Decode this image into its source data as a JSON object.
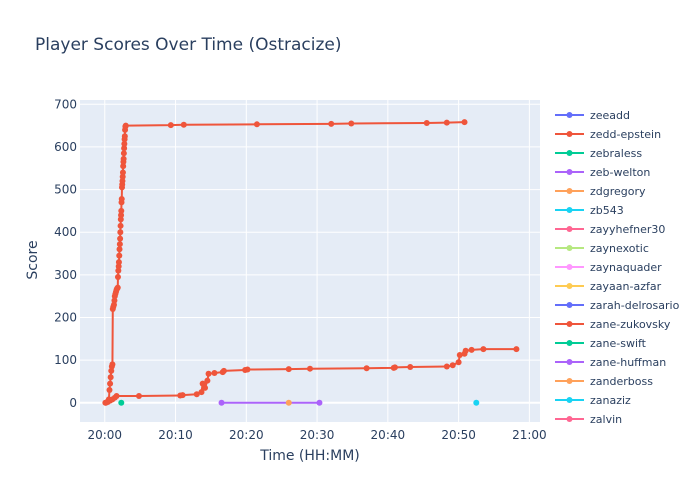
{
  "chart_data": {
    "type": "line",
    "title": "Player Scores Over Time (Ostracize)",
    "xlabel": "Time (HH:MM)",
    "ylabel": "Score",
    "x_ticks": [
      "20:00",
      "20:10",
      "20:20",
      "20:30",
      "20:40",
      "20:50",
      "21:00"
    ],
    "y_ticks": [
      0,
      100,
      200,
      300,
      400,
      500,
      600,
      700
    ],
    "xlim_minutes_after_2000": [
      -3.5,
      61.5
    ],
    "ylim": [
      -45,
      710
    ],
    "grid": true,
    "legend_placement": "right",
    "legend": [
      {
        "name": "zeeadd",
        "color": "#636efa"
      },
      {
        "name": "zedd-epstein",
        "color": "#EF553B"
      },
      {
        "name": "zebraless",
        "color": "#00cc96"
      },
      {
        "name": "zeb-welton",
        "color": "#ab63fa"
      },
      {
        "name": "zdgregory",
        "color": "#FFA15A"
      },
      {
        "name": "zb543",
        "color": "#19d3f3"
      },
      {
        "name": "zayyhefner30",
        "color": "#FF6692"
      },
      {
        "name": "zaynexotic",
        "color": "#B6E880"
      },
      {
        "name": "zaynaquader",
        "color": "#FF97FF"
      },
      {
        "name": "zayaan-azfar",
        "color": "#FECB52"
      },
      {
        "name": "zarah-delrosario",
        "color": "#636efa"
      },
      {
        "name": "zane-zukovsky",
        "color": "#EF553B"
      },
      {
        "name": "zane-swift",
        "color": "#00cc96"
      },
      {
        "name": "zane-huffman",
        "color": "#ab63fa"
      },
      {
        "name": "zanderboss",
        "color": "#FFA15A"
      },
      {
        "name": "zanaziz",
        "color": "#19d3f3"
      },
      {
        "name": "zalvin",
        "color": "#FF6692"
      }
    ],
    "series": [
      {
        "name": "zedd-epstein",
        "color": "#EF553B",
        "points": [
          [
            "20:00:10",
            0
          ],
          [
            "20:00:25",
            3
          ],
          [
            "20:00:35",
            8
          ],
          [
            "20:00:40",
            30
          ],
          [
            "20:00:45",
            45
          ],
          [
            "20:00:50",
            60
          ],
          [
            "20:00:55",
            75
          ],
          [
            "20:01:00",
            85
          ],
          [
            "20:01:05",
            90
          ],
          [
            "20:01:08",
            220
          ],
          [
            "20:01:12",
            225
          ],
          [
            "20:01:18",
            230
          ],
          [
            "20:01:22",
            240
          ],
          [
            "20:01:25",
            250
          ],
          [
            "20:01:30",
            255
          ],
          [
            "20:01:35",
            260
          ],
          [
            "20:01:40",
            265
          ],
          [
            "20:01:45",
            268
          ],
          [
            "20:01:50",
            270
          ],
          [
            "20:01:52",
            295
          ],
          [
            "20:01:55",
            310
          ],
          [
            "20:01:58",
            320
          ],
          [
            "20:02:00",
            330
          ],
          [
            "20:02:03",
            345
          ],
          [
            "20:02:05",
            360
          ],
          [
            "20:02:08",
            372
          ],
          [
            "20:02:10",
            385
          ],
          [
            "20:02:12",
            400
          ],
          [
            "20:02:14",
            415
          ],
          [
            "20:02:16",
            430
          ],
          [
            "20:02:18",
            440
          ],
          [
            "20:02:20",
            450
          ],
          [
            "20:02:22",
            470
          ],
          [
            "20:02:24",
            478
          ],
          [
            "20:02:26",
            505
          ],
          [
            "20:02:28",
            512
          ],
          [
            "20:02:30",
            520
          ],
          [
            "20:02:32",
            530
          ],
          [
            "20:02:34",
            540
          ],
          [
            "20:02:36",
            555
          ],
          [
            "20:02:38",
            565
          ],
          [
            "20:02:40",
            572
          ],
          [
            "20:02:42",
            585
          ],
          [
            "20:02:44",
            597
          ],
          [
            "20:02:46",
            607
          ],
          [
            "20:02:48",
            618
          ],
          [
            "20:02:50",
            625
          ],
          [
            "20:02:52",
            640
          ],
          [
            "20:02:55",
            648
          ],
          [
            "20:02:58",
            650
          ],
          [
            "20:09:20",
            651
          ],
          [
            "20:11:10",
            652
          ],
          [
            "20:21:30",
            653
          ],
          [
            "20:32:00",
            654
          ],
          [
            "20:34:50",
            655
          ],
          [
            "20:45:30",
            656
          ],
          [
            "20:48:20",
            657
          ],
          [
            "20:50:50",
            658
          ]
        ]
      },
      {
        "name": "zane-zukovsky",
        "color": "#EF553B",
        "points": [
          [
            "20:00:05",
            0
          ],
          [
            "20:00:25",
            2
          ],
          [
            "20:00:45",
            5
          ],
          [
            "20:01:05",
            8
          ],
          [
            "20:01:25",
            12
          ],
          [
            "20:01:40",
            16
          ],
          [
            "20:04:50",
            16
          ],
          [
            "20:10:40",
            17
          ],
          [
            "20:11:00",
            18
          ],
          [
            "20:13:00",
            20
          ],
          [
            "20:13:40",
            25
          ],
          [
            "20:13:50",
            45
          ],
          [
            "20:14:10",
            35
          ],
          [
            "20:14:30",
            52
          ],
          [
            "20:14:40",
            68
          ],
          [
            "20:15:30",
            70
          ],
          [
            "20:16:40",
            72
          ],
          [
            "20:16:50",
            75
          ],
          [
            "20:19:50",
            77
          ],
          [
            "20:20:10",
            78
          ],
          [
            "20:26:00",
            79
          ],
          [
            "20:29:00",
            80
          ],
          [
            "20:37:00",
            81
          ],
          [
            "20:40:50",
            82
          ],
          [
            "20:41:00",
            83
          ],
          [
            "20:43:10",
            84
          ],
          [
            "20:48:20",
            85
          ],
          [
            "20:49:10",
            88
          ],
          [
            "20:50:00",
            95
          ],
          [
            "20:50:10",
            112
          ],
          [
            "20:50:50",
            115
          ],
          [
            "20:51:00",
            122
          ],
          [
            "20:51:50",
            124
          ],
          [
            "20:53:30",
            126
          ],
          [
            "20:58:10",
            126
          ]
        ]
      },
      {
        "name": "zane-huffman",
        "color": "#ab63fa",
        "points": [
          [
            "20:16:30",
            0
          ],
          [
            "20:30:20",
            0
          ]
        ]
      },
      {
        "name": "zebraless",
        "color": "#00cc96",
        "points": [
          [
            "20:02:20",
            0
          ]
        ]
      },
      {
        "name": "zanderboss",
        "color": "#FFA15A",
        "points": [
          [
            "20:26:00",
            0
          ]
        ]
      },
      {
        "name": "zanaziz",
        "color": "#19d3f3",
        "points": [
          [
            "20:52:30",
            0
          ]
        ]
      }
    ]
  }
}
